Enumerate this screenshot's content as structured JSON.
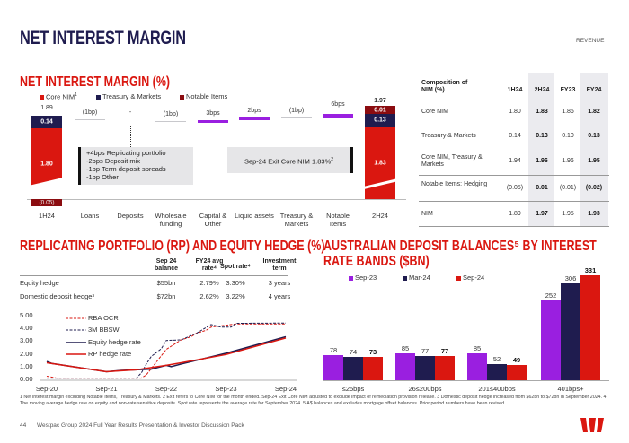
{
  "header": {
    "title": "NET INTEREST MARGIN",
    "section": "REVENUE"
  },
  "nim": {
    "title": "NET INTEREST MARGIN (%)",
    "legend": [
      "Core NIM",
      "Treasury & Markets",
      "Notable Items"
    ],
    "legend_sup": "1",
    "colors": {
      "core": "#da1710",
      "treasury": "#1f1c4f",
      "notable": "#8b0c10",
      "increase": "#9a1fe0",
      "neutral": "#c8c8cc"
    },
    "start": {
      "label": "1H24",
      "total": "1.89",
      "core": "1.80",
      "treasury": "0.14",
      "notable": "(0.05)"
    },
    "steps": [
      {
        "label": "Loans",
        "value": "(1bp)",
        "type": "neutral"
      },
      {
        "label": "Deposits",
        "value": "-",
        "type": "none"
      },
      {
        "label": "Wholesale funding",
        "value": "(1bp)",
        "type": "neutral"
      },
      {
        "label": "Capital & Other",
        "value": "3bps",
        "type": "increase"
      },
      {
        "label": "Liquid assets",
        "value": "2bps",
        "type": "increase"
      },
      {
        "label": "Treasury & Markets",
        "value": "(1bp)",
        "type": "neutral"
      },
      {
        "label": "Notable Items",
        "value": "6bps",
        "type": "increase"
      }
    ],
    "end": {
      "label": "2H24",
      "total": "1.97",
      "core": "1.83",
      "treasury": "0.13",
      "notable": "0.01"
    },
    "deposit_note": [
      "+4bps Replicating portfolio",
      "-2bps Deposit mix",
      "-1bp Term deposit spreads",
      "-1bp Other"
    ],
    "exit_note": "Sep-24 Exit Core NIM 1.83%",
    "exit_sup": "2"
  },
  "composition": {
    "title": "Composition of NIM (%)",
    "columns": [
      "1H24",
      "2H24",
      "FY23",
      "FY24"
    ],
    "rows": [
      {
        "label": "Core NIM",
        "values": [
          "1.80",
          "1.83",
          "1.86",
          "1.82"
        ]
      },
      {
        "label": "Treasury & Markets",
        "values": [
          "0.14",
          "0.13",
          "0.10",
          "0.13"
        ]
      },
      {
        "label": "Core NIM, Treasury & Markets",
        "values": [
          "1.94",
          "1.96",
          "1.96",
          "1.95"
        ]
      },
      {
        "label": "Notable Items: Hedging",
        "values": [
          "(0.05)",
          "0.01",
          "(0.01)",
          "(0.02)"
        ]
      },
      {
        "label": "NIM",
        "values": [
          "1.89",
          "1.97",
          "1.95",
          "1.93"
        ]
      }
    ]
  },
  "rp": {
    "title": "REPLICATING PORTFOLIO (RP) AND EQUITY HEDGE (%)",
    "columns": [
      "Sep 24 balance",
      "FY24 avg rate⁴",
      "Spot rate⁴",
      "Investment term"
    ],
    "rows": [
      {
        "label": "Equity hedge",
        "values": [
          "$55bn",
          "2.79%",
          "3.30%",
          "3 years"
        ]
      },
      {
        "label": "Domestic deposit hedge³",
        "values": [
          "$72bn",
          "2.62%",
          "3.22%",
          "4 years"
        ]
      }
    ]
  },
  "chart_data": [
    {
      "type": "line",
      "ylim": [
        0,
        5
      ],
      "y_ticks": [
        "0.00",
        "1.00",
        "2.00",
        "3.00",
        "4.00",
        "5.00"
      ],
      "x_ticks": [
        "Sep-20",
        "Sep-21",
        "Sep-22",
        "Sep-23",
        "Sep-24"
      ],
      "legend": "top-left",
      "series": [
        {
          "name": "RBA OCR",
          "color": "#da1710",
          "dash": true,
          "points": [
            [
              "2020-09",
              0.25
            ],
            [
              "2020-11",
              0.1
            ],
            [
              "2022-04",
              0.1
            ],
            [
              "2022-05",
              0.35
            ],
            [
              "2022-06",
              0.85
            ],
            [
              "2022-07",
              1.35
            ],
            [
              "2022-08",
              1.85
            ],
            [
              "2022-09",
              2.35
            ],
            [
              "2022-10",
              2.6
            ],
            [
              "2022-11",
              2.85
            ],
            [
              "2022-12",
              3.1
            ],
            [
              "2023-02",
              3.35
            ],
            [
              "2023-03",
              3.6
            ],
            [
              "2023-05",
              3.85
            ],
            [
              "2023-06",
              4.1
            ],
            [
              "2023-11",
              4.35
            ],
            [
              "2024-09",
              4.35
            ]
          ]
        },
        {
          "name": "3M BBSW",
          "color": "#1f1c4f",
          "dash": true,
          "points": [
            [
              "2020-09",
              0.1
            ],
            [
              "2022-03",
              0.1
            ],
            [
              "2022-04",
              0.5
            ],
            [
              "2022-05",
              1.2
            ],
            [
              "2022-06",
              1.8
            ],
            [
              "2022-08",
              2.4
            ],
            [
              "2022-09",
              3.05
            ],
            [
              "2022-12",
              3.1
            ],
            [
              "2023-03",
              3.6
            ],
            [
              "2023-06",
              4.3
            ],
            [
              "2023-08",
              4.1
            ],
            [
              "2023-10",
              4.1
            ],
            [
              "2023-11",
              4.4
            ],
            [
              "2024-09",
              4.42
            ]
          ]
        },
        {
          "name": "Equity hedge rate",
          "color": "#1f1c4f",
          "dash": false,
          "points": [
            [
              "2020-09",
              1.4
            ],
            [
              "2020-10",
              1.25
            ],
            [
              "2021-09",
              0.6
            ],
            [
              "2021-12",
              0.7
            ],
            [
              "2022-06",
              0.8
            ],
            [
              "2022-09",
              1.1
            ],
            [
              "2022-10",
              1.0
            ],
            [
              "2022-12",
              1.2
            ],
            [
              "2023-09",
              2.05
            ],
            [
              "2024-09",
              3.35
            ]
          ]
        },
        {
          "name": "RP hedge rate",
          "color": "#da1710",
          "dash": false,
          "points": [
            [
              "2020-09",
              1.3
            ],
            [
              "2021-09",
              0.6
            ],
            [
              "2022-03",
              0.75
            ],
            [
              "2022-09",
              1.1
            ],
            [
              "2022-12",
              1.3
            ],
            [
              "2023-09",
              1.95
            ],
            [
              "2024-09",
              3.25
            ]
          ]
        }
      ]
    },
    {
      "type": "bar",
      "title": "AUSTRALIAN DEPOSIT BALANCES⁵ BY INTEREST RATE BANDS ($BN)",
      "categories": [
        "≤25bps",
        "26≤200bps",
        "201≤400bps",
        "401bps+"
      ],
      "legend": "top",
      "series": [
        {
          "name": "Sep-23",
          "color": "#9a1fe0",
          "values": [
            78,
            85,
            85,
            252
          ]
        },
        {
          "name": "Mar-24",
          "color": "#1f1c4f",
          "values": [
            74,
            77,
            52,
            306
          ]
        },
        {
          "name": "Sep-24",
          "color": "#da1710",
          "values": [
            73,
            77,
            49,
            331
          ]
        }
      ]
    }
  ],
  "footnote": "1 Net interest margin excluding Notable Items, Treasury & Markets. 2 Exit refers to Core NIM for the month ended. Sep-24 Exit Core NIM adjusted to exclude impact of remediation provision release. 3 Domestic deposit hedge increased from $62bn to $72bn in September 2024. 4 The moving average hedge rate on equity and non-rate sensitive deposits. Spot rate represents the average rate for September 2024. 5 A$ balances and excludes mortgage offset balances. Prior period numbers have been revised.",
  "footer": {
    "page": "44",
    "text": "Westpac Group 2024 Full Year Results Presentation & Investor Discussion Pack",
    "logo": "W"
  }
}
